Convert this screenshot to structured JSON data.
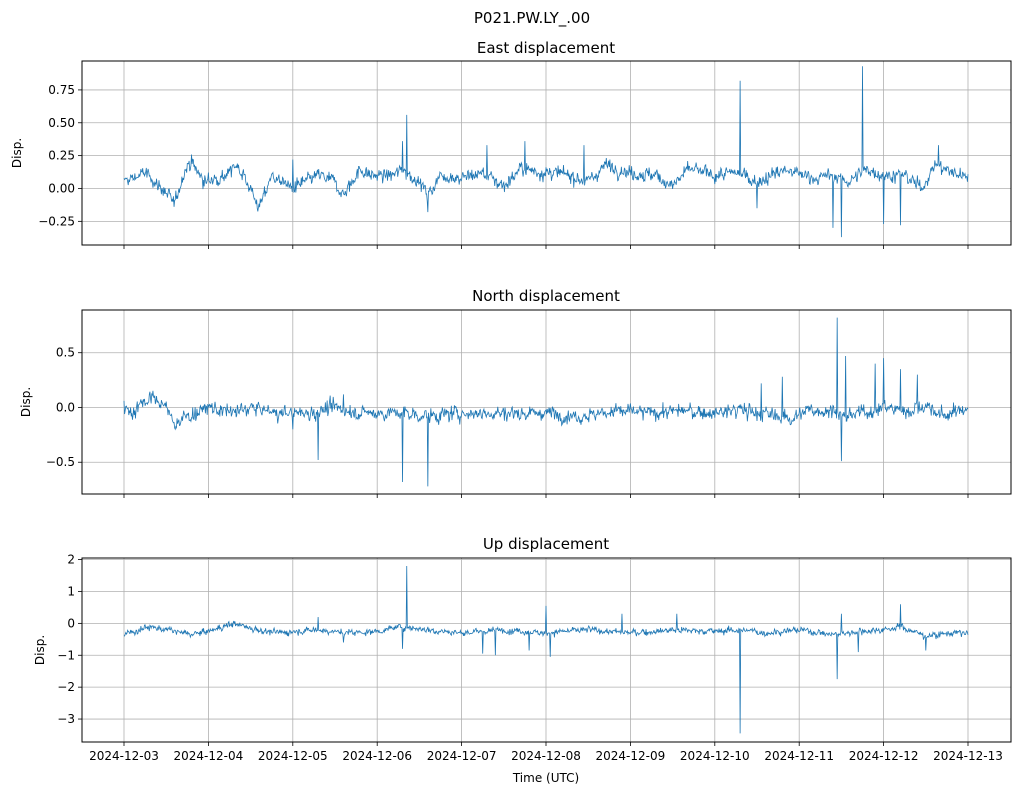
{
  "figure": {
    "suptitle": "P021.PW.LY_.00",
    "xlabel": "Time (UTC)"
  },
  "colors": {
    "series": "#1f77b4",
    "grid": "#b0b0b0"
  },
  "chart_data": [
    {
      "type": "line",
      "title": "East displacement",
      "ylabel": "Disp.",
      "x_range": [
        "2024-12-03",
        "2024-12-13"
      ],
      "ylim": [
        -0.43,
        0.97
      ],
      "yticks": [
        -0.25,
        0.0,
        0.25,
        0.5,
        0.75
      ],
      "ytick_labels": [
        "−0.25",
        "0.00",
        "0.25",
        "0.50",
        "0.75"
      ],
      "show_xtick_labels": false,
      "grid": true,
      "series": [
        {
          "name": "East",
          "baseline": [
            [
              0,
              0.05
            ],
            [
              0.25,
              0.12
            ],
            [
              0.45,
              0.0
            ],
            [
              0.6,
              -0.12
            ],
            [
              0.72,
              0.15
            ],
            [
              0.8,
              0.2
            ],
            [
              0.95,
              0.05
            ],
            [
              1.2,
              0.1
            ],
            [
              1.35,
              0.18
            ],
            [
              1.5,
              0.0
            ],
            [
              1.6,
              -0.15
            ],
            [
              1.75,
              0.1
            ],
            [
              2.0,
              0.0
            ],
            [
              2.3,
              0.1
            ],
            [
              2.5,
              0.05
            ],
            [
              2.6,
              -0.05
            ],
            [
              2.8,
              0.15
            ],
            [
              2.9,
              0.1
            ],
            [
              3.2,
              0.1
            ],
            [
              3.3,
              0.15
            ],
            [
              3.5,
              0.05
            ],
            [
              3.6,
              -0.05
            ],
            [
              3.75,
              0.1
            ],
            [
              4.0,
              0.08
            ],
            [
              4.25,
              0.12
            ],
            [
              4.5,
              0.02
            ],
            [
              4.7,
              0.15
            ],
            [
              5.0,
              0.12
            ],
            [
              5.3,
              0.1
            ],
            [
              5.5,
              0.05
            ],
            [
              5.7,
              0.18
            ],
            [
              6.0,
              0.12
            ],
            [
              6.3,
              0.1
            ],
            [
              6.5,
              0.02
            ],
            [
              6.7,
              0.15
            ],
            [
              7.0,
              0.1
            ],
            [
              7.3,
              0.12
            ],
            [
              7.5,
              0.05
            ],
            [
              7.8,
              0.14
            ],
            [
              8.2,
              0.08
            ],
            [
              8.4,
              0.1
            ],
            [
              8.6,
              0.05
            ],
            [
              8.8,
              0.15
            ],
            [
              9.0,
              0.1
            ],
            [
              9.25,
              0.1
            ],
            [
              9.45,
              0.0
            ],
            [
              9.6,
              0.18
            ],
            [
              9.9,
              0.1
            ],
            [
              10.0,
              0.12
            ]
          ],
          "noise": 0.035,
          "spikes": [
            [
              2.0,
              0.22
            ],
            [
              3.3,
              0.36
            ],
            [
              3.35,
              0.56
            ],
            [
              3.6,
              -0.18
            ],
            [
              4.3,
              0.33
            ],
            [
              4.75,
              0.36
            ],
            [
              5.45,
              0.33
            ],
            [
              7.3,
              0.82
            ],
            [
              7.5,
              -0.15
            ],
            [
              8.4,
              -0.3
            ],
            [
              8.5,
              -0.37
            ],
            [
              8.75,
              0.93
            ],
            [
              9.0,
              -0.27
            ],
            [
              9.2,
              -0.28
            ],
            [
              9.65,
              0.33
            ]
          ]
        }
      ]
    },
    {
      "type": "line",
      "title": "North displacement",
      "ylabel": "Disp.",
      "x_range": [
        "2024-12-03",
        "2024-12-13"
      ],
      "ylim": [
        -0.79,
        0.89
      ],
      "yticks": [
        -0.5,
        0.0,
        0.5
      ],
      "ytick_labels": [
        "−0.5",
        "0.0",
        "0.5"
      ],
      "show_xtick_labels": false,
      "grid": true,
      "series": [
        {
          "name": "North",
          "baseline": [
            [
              0,
              0.0
            ],
            [
              0.1,
              -0.05
            ],
            [
              0.2,
              0.05
            ],
            [
              0.35,
              0.08
            ],
            [
              0.5,
              0.0
            ],
            [
              0.6,
              -0.15
            ],
            [
              0.7,
              -0.1
            ],
            [
              0.85,
              -0.05
            ],
            [
              1.0,
              0.0
            ],
            [
              1.3,
              -0.05
            ],
            [
              1.5,
              0.0
            ],
            [
              1.8,
              -0.05
            ],
            [
              2.2,
              -0.05
            ],
            [
              2.5,
              0.0
            ],
            [
              2.8,
              -0.05
            ],
            [
              3.0,
              -0.05
            ],
            [
              3.3,
              -0.05
            ],
            [
              3.6,
              -0.08
            ],
            [
              4.0,
              -0.05
            ],
            [
              4.5,
              -0.05
            ],
            [
              5.0,
              -0.05
            ],
            [
              5.4,
              -0.08
            ],
            [
              5.8,
              -0.03
            ],
            [
              6.2,
              -0.05
            ],
            [
              6.6,
              -0.03
            ],
            [
              7.0,
              -0.05
            ],
            [
              7.3,
              -0.02
            ],
            [
              7.6,
              -0.06
            ],
            [
              7.9,
              -0.1
            ],
            [
              8.1,
              -0.03
            ],
            [
              8.4,
              -0.02
            ],
            [
              8.55,
              -0.1
            ],
            [
              8.7,
              -0.05
            ],
            [
              9.0,
              0.0
            ],
            [
              9.3,
              -0.03
            ],
            [
              9.5,
              0.02
            ],
            [
              9.7,
              -0.08
            ],
            [
              10.0,
              0.0
            ]
          ],
          "noise": 0.045,
          "spikes": [
            [
              0.3,
              0.12
            ],
            [
              2.0,
              -0.2
            ],
            [
              2.3,
              -0.48
            ],
            [
              2.6,
              0.12
            ],
            [
              3.3,
              -0.68
            ],
            [
              3.6,
              -0.72
            ],
            [
              7.55,
              0.22
            ],
            [
              7.8,
              0.28
            ],
            [
              8.45,
              0.82
            ],
            [
              8.5,
              -0.49
            ],
            [
              8.55,
              0.47
            ],
            [
              8.9,
              0.4
            ],
            [
              9.0,
              0.45
            ],
            [
              9.2,
              0.35
            ],
            [
              9.4,
              0.3
            ]
          ]
        }
      ]
    },
    {
      "type": "line",
      "title": "Up displacement",
      "ylabel": "Disp.",
      "x_range": [
        "2024-12-03",
        "2024-12-13"
      ],
      "ylim": [
        -3.72,
        2.05
      ],
      "yticks": [
        -3,
        -2,
        -1,
        0,
        1,
        2
      ],
      "ytick_labels": [
        "−3",
        "−2",
        "−1",
        "0",
        "1",
        "2"
      ],
      "xtick_labels": [
        "2024-12-03",
        "2024-12-04",
        "2024-12-05",
        "2024-12-06",
        "2024-12-07",
        "2024-12-08",
        "2024-12-09",
        "2024-12-10",
        "2024-12-11",
        "2024-12-12",
        "2024-12-13"
      ],
      "show_xtick_labels": true,
      "grid": true,
      "series": [
        {
          "name": "Up",
          "baseline": [
            [
              0,
              -0.35
            ],
            [
              0.3,
              -0.1
            ],
            [
              0.5,
              -0.2
            ],
            [
              0.8,
              -0.35
            ],
            [
              1.0,
              -0.25
            ],
            [
              1.3,
              0.0
            ],
            [
              1.5,
              -0.15
            ],
            [
              1.8,
              -0.3
            ],
            [
              2.0,
              -0.25
            ],
            [
              2.3,
              -0.2
            ],
            [
              2.6,
              -0.3
            ],
            [
              3.0,
              -0.25
            ],
            [
              3.3,
              -0.1
            ],
            [
              3.6,
              -0.2
            ],
            [
              4.0,
              -0.3
            ],
            [
              4.5,
              -0.2
            ],
            [
              5.0,
              -0.3
            ],
            [
              5.5,
              -0.2
            ],
            [
              6.0,
              -0.3
            ],
            [
              6.5,
              -0.2
            ],
            [
              7.0,
              -0.25
            ],
            [
              7.3,
              -0.2
            ],
            [
              7.6,
              -0.3
            ],
            [
              8.0,
              -0.2
            ],
            [
              8.4,
              -0.35
            ],
            [
              8.7,
              -0.25
            ],
            [
              9.0,
              -0.2
            ],
            [
              9.2,
              -0.1
            ],
            [
              9.5,
              -0.4
            ],
            [
              9.8,
              -0.3
            ],
            [
              10.0,
              -0.3
            ]
          ],
          "noise": 0.07,
          "spikes": [
            [
              2.3,
              0.2
            ],
            [
              2.6,
              -0.6
            ],
            [
              3.3,
              -0.8
            ],
            [
              3.35,
              1.8
            ],
            [
              4.25,
              -0.95
            ],
            [
              4.4,
              -1.0
            ],
            [
              4.8,
              -0.85
            ],
            [
              5.0,
              0.55
            ],
            [
              5.05,
              -1.05
            ],
            [
              5.9,
              0.3
            ],
            [
              6.55,
              0.3
            ],
            [
              7.3,
              -3.45
            ],
            [
              8.45,
              -1.75
            ],
            [
              8.5,
              0.3
            ],
            [
              8.7,
              -0.9
            ],
            [
              9.2,
              0.6
            ],
            [
              9.5,
              -0.85
            ]
          ]
        }
      ]
    }
  ]
}
